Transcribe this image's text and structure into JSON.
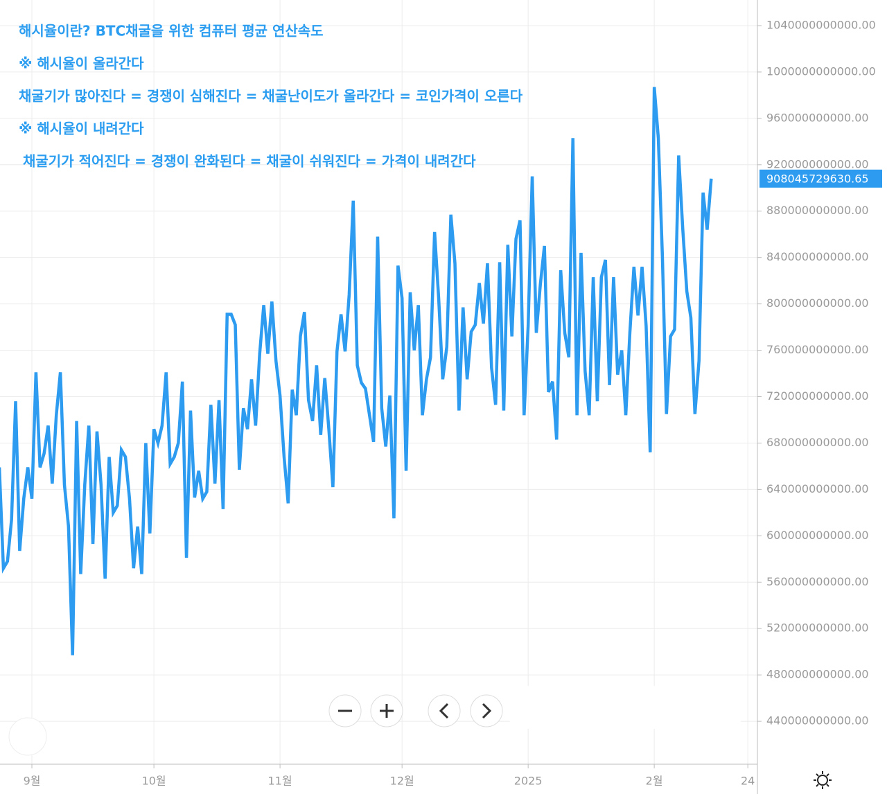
{
  "chart_data": {
    "type": "line",
    "annotations": [
      "해시율이란? BTC채굴을 위한 컴퓨터 평균 연산속도",
      "※ 해시율이 올라간다",
      "채굴기가 많아진다 = 경쟁이 심해진다 = 채굴난이도가 올라간다 = 코인가격이 오른다",
      "※ 해시율이 내려간다",
      "채굴기가 적어진다 = 경쟁이 완화된다 = 채굴이 쉬워진다 = 가격이 내려간다"
    ],
    "x": [
      -8,
      -7,
      -6,
      -5,
      -4,
      -3,
      -2,
      -1,
      0,
      1,
      2,
      3,
      4,
      5,
      6,
      7,
      8,
      9,
      10,
      11,
      12,
      13,
      14,
      15,
      16,
      17,
      18,
      19,
      20,
      21,
      22,
      23,
      24,
      25,
      26,
      27,
      28,
      29,
      30,
      31,
      32,
      33,
      34,
      35,
      36,
      37,
      38,
      39,
      40,
      41,
      42,
      43,
      44,
      45,
      46,
      47,
      48,
      49,
      50,
      51,
      52,
      53,
      54,
      55,
      56,
      57,
      58,
      59,
      60,
      61,
      62,
      63,
      64,
      65,
      66,
      67,
      68,
      69,
      70,
      71,
      72,
      73,
      74,
      75,
      76,
      77,
      78,
      79,
      80,
      81,
      82,
      83,
      84,
      85,
      86,
      87,
      88,
      89,
      90,
      91,
      92,
      93,
      94,
      95,
      96,
      97,
      98,
      99,
      100,
      101,
      102,
      103,
      104,
      105,
      106,
      107,
      108,
      109,
      110,
      111,
      112,
      113,
      114,
      115,
      116,
      117,
      118,
      119,
      120,
      121,
      122,
      123,
      124,
      125,
      126,
      127,
      128,
      129,
      130,
      131,
      132,
      133,
      134,
      135,
      136,
      137,
      138,
      139,
      140,
      141,
      142,
      143,
      144,
      145,
      146,
      147,
      148,
      149,
      150,
      151,
      152,
      153,
      154,
      155,
      156,
      157,
      158,
      159,
      160,
      161,
      162,
      163,
      164,
      165,
      166,
      167
    ],
    "series": [
      {
        "color": "#2d9cf0",
        "values": [
          659000000000.0,
          572000000000.0,
          578000000000.0,
          614000000000.0,
          716000000000.0,
          587000000000.0,
          632000000000.0,
          659000000000.0,
          632000000000.0,
          741000000000.0,
          659000000000.0,
          671000000000.0,
          695000000000.0,
          645000000000.0,
          704000000000.0,
          741000000000.0,
          644000000000.0,
          608000000000.0,
          497000000000.0,
          699000000000.0,
          567000000000.0,
          644000000000.0,
          695000000000.0,
          593000000000.0,
          690000000000.0,
          644000000000.0,
          563000000000.0,
          668000000000.0,
          620000000000.0,
          626000000000.0,
          674000000000.0,
          668000000000.0,
          632000000000.0,
          572000000000.0,
          608000000000.0,
          567000000000.0,
          680000000000.0,
          602000000000.0,
          692000000000.0,
          680000000000.0,
          695000000000.0,
          741000000000.0,
          662000000000.0,
          668000000000.0,
          680000000000.0,
          733000000000.0,
          581000000000.0,
          708000000000.0,
          633000000000.0,
          656000000000.0,
          632000000000.0,
          638000000000.0,
          713000000000.0,
          645000000000.0,
          717000000000.0,
          623000000000.0,
          791000000000.0,
          791000000000.0,
          782000000000.0,
          657000000000.0,
          710000000000.0,
          692000000000.0,
          735000000000.0,
          695000000000.0,
          757000000000.0,
          799000000000.0,
          757000000000.0,
          802000000000.0,
          751000000000.0,
          721000000000.0,
          668000000000.0,
          628000000000.0,
          726000000000.0,
          704000000000.0,
          772000000000.0,
          793000000000.0,
          717000000000.0,
          699000000000.0,
          747000000000.0,
          687000000000.0,
          736000000000.0,
          692000000000.0,
          642000000000.0,
          759000000000.0,
          791000000000.0,
          759000000000.0,
          808000000000.0,
          889000000000.0,
          747000000000.0,
          732000000000.0,
          727000000000.0,
          704000000000.0,
          681000000000.0,
          858000000000.0,
          710000000000.0,
          677000000000.0,
          721000000000.0,
          615000000000.0,
          833000000000.0,
          805000000000.0,
          656000000000.0,
          810000000000.0,
          760000000000.0,
          799000000000.0,
          704000000000.0,
          735000000000.0,
          754000000000.0,
          862000000000.0,
          805000000000.0,
          735000000000.0,
          763000000000.0,
          877000000000.0,
          835000000000.0,
          708000000000.0,
          797000000000.0,
          735000000000.0,
          776000000000.0,
          782000000000.0,
          818000000000.0,
          783000000000.0,
          835000000000.0,
          745000000000.0,
          713000000000.0,
          836000000000.0,
          708000000000.0,
          851000000000.0,
          772000000000.0,
          856000000000.0,
          872000000000.0,
          704000000000.0,
          781000000000.0,
          910000000000.0,
          775000000000.0,
          817000000000.0,
          850000000000.0,
          724000000000.0,
          733000000000.0,
          683000000000.0,
          829000000000.0,
          775000000000.0,
          754000000000.0,
          943000000000.0,
          704000000000.0,
          844000000000.0,
          742000000000.0,
          704000000000.0,
          823000000000.0,
          716000000000.0,
          823000000000.0,
          838000000000.0,
          730000000000.0,
          823000000000.0,
          739000000000.0,
          760000000000.0,
          704000000000.0,
          775000000000.0,
          832000000000.0,
          790000000000.0,
          832000000000.0,
          781000000000.0,
          672000000000.0,
          987000000000.0,
          943000000000.0,
          841000000000.0,
          705000000000.0,
          772000000000.0,
          778000000000.0,
          928000000000.0,
          865000000000.0,
          811000000000.0,
          788000000000.0,
          705000000000.0,
          751000000000.0,
          896000000000.0,
          864000000000.0,
          908045729630.65
        ]
      }
    ],
    "xlim": [
      -7.84,
      178.36
    ],
    "xticks": [
      {
        "value": 0,
        "label": "9월"
      },
      {
        "value": 30,
        "label": "10월"
      },
      {
        "value": 61,
        "label": "11월"
      },
      {
        "value": 91,
        "label": "12월"
      },
      {
        "value": 122,
        "label": "2025"
      },
      {
        "value": 153,
        "label": "2월"
      },
      {
        "value": 176,
        "label": "24"
      }
    ],
    "ylim": [
      403000000000.0,
      1062100000000.0
    ],
    "yticks": [
      {
        "value": 440000000000.0,
        "label": "440000000000.00"
      },
      {
        "value": 480000000000.0,
        "label": "480000000000.00"
      },
      {
        "value": 520000000000.0,
        "label": "520000000000.00"
      },
      {
        "value": 560000000000.0,
        "label": "560000000000.00"
      },
      {
        "value": 600000000000.0,
        "label": "600000000000.00"
      },
      {
        "value": 640000000000.0,
        "label": "640000000000.00"
      },
      {
        "value": 680000000000.0,
        "label": "680000000000.00"
      },
      {
        "value": 720000000000.0,
        "label": "720000000000.00"
      },
      {
        "value": 760000000000.0,
        "label": "760000000000.00"
      },
      {
        "value": 800000000000.0,
        "label": "800000000000.00"
      },
      {
        "value": 840000000000.0,
        "label": "840000000000.00"
      },
      {
        "value": 880000000000.0,
        "label": "880000000000.00"
      },
      {
        "value": 920000000000.0,
        "label": "920000000000.00"
      },
      {
        "value": 960000000000.0,
        "label": "960000000000.00"
      },
      {
        "value": 1000000000000.0,
        "label": "1000000000000.00"
      },
      {
        "value": 1040000000000.0,
        "label": "1040000000000.00"
      }
    ],
    "grid": true
  }
}
